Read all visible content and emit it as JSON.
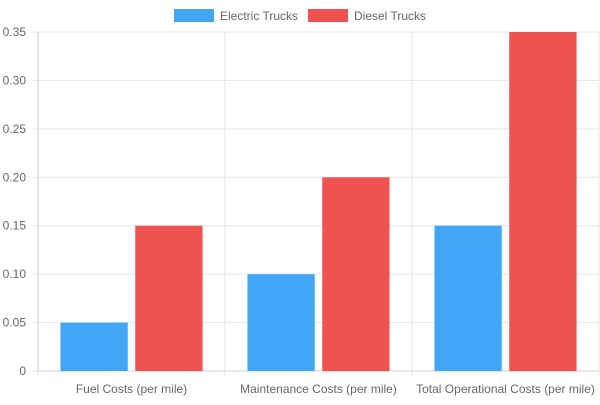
{
  "chart_data": {
    "type": "bar",
    "categories": [
      "Fuel Costs (per mile)",
      "Maintenance Costs (per mile)",
      "Total Operational Costs (per mile)"
    ],
    "series": [
      {
        "name": "Electric Trucks",
        "values": [
          0.05,
          0.1,
          0.15
        ],
        "color": "#42a5f5"
      },
      {
        "name": "Diesel Trucks",
        "values": [
          0.15,
          0.2,
          0.35
        ],
        "color": "#ef5350"
      }
    ],
    "yticks": [
      "0",
      "0.05",
      "0.10",
      "0.15",
      "0.20",
      "0.25",
      "0.30",
      "0.35"
    ],
    "ylim": [
      0,
      0.35
    ],
    "grid": true,
    "legend_position": "top-center"
  }
}
